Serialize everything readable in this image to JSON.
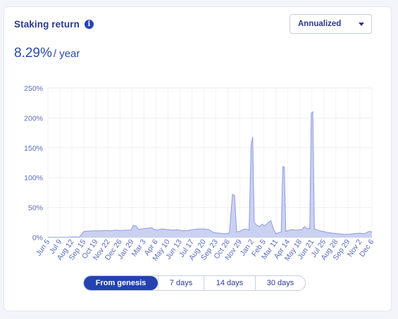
{
  "header": {
    "title": "Staking return",
    "info_icon": "info-icon",
    "dropdown": {
      "selected": "Annualized",
      "icon": "chevron-down-icon"
    }
  },
  "summary": {
    "value": "8.29%",
    "unit": "/ year"
  },
  "tabs": [
    {
      "label": "From genesis",
      "active": true
    },
    {
      "label": "7 days",
      "active": false
    },
    {
      "label": "14 days",
      "active": false
    },
    {
      "label": "30 days",
      "active": false
    }
  ],
  "colors": {
    "accent": "#2443b0",
    "area_fill": "#c5ccef",
    "area_line": "#8d9be0",
    "text": "#2b3a8f"
  },
  "chart_data": {
    "type": "area",
    "ylim": [
      0,
      250
    ],
    "y_ticks": [
      "0%",
      "50%",
      "100%",
      "150%",
      "200%",
      "250%"
    ],
    "grid": true,
    "x_ticks": [
      "Jun 5",
      "Jul 9",
      "Aug 12",
      "Sep 15",
      "Oct 19",
      "Nov 22",
      "Dec 26",
      "Jan 29",
      "Mar 3",
      "Apr 6",
      "May 10",
      "Jun 13",
      "Jul 17",
      "Aug 20",
      "Sep 23",
      "Oct 26",
      "Nov 29",
      "Jan 2",
      "Feb 5",
      "Mar 11",
      "Apr 14",
      "May 18",
      "Jun 21",
      "Jul 25",
      "Aug 28",
      "Sep 29",
      "Nov 2",
      "Dec 6"
    ],
    "points": [
      [
        0,
        0
      ],
      [
        4,
        0
      ],
      [
        5,
        1
      ],
      [
        6,
        0
      ],
      [
        7,
        10
      ],
      [
        8,
        10.5
      ],
      [
        9,
        11
      ],
      [
        10,
        11
      ],
      [
        11,
        11.5
      ],
      [
        12,
        11
      ],
      [
        13,
        12
      ],
      [
        14,
        11.5
      ],
      [
        15,
        12
      ],
      [
        16,
        12
      ],
      [
        16.5,
        20
      ],
      [
        17,
        19
      ],
      [
        17.5,
        13
      ],
      [
        18,
        14
      ],
      [
        19,
        15
      ],
      [
        20,
        16
      ],
      [
        20.5,
        13
      ],
      [
        21,
        12
      ],
      [
        22,
        14
      ],
      [
        23,
        13
      ],
      [
        24,
        12
      ],
      [
        25,
        12.5
      ],
      [
        26,
        11
      ],
      [
        27,
        11.5
      ],
      [
        28,
        13
      ],
      [
        29,
        14
      ],
      [
        30,
        14
      ],
      [
        31,
        13
      ],
      [
        32,
        8
      ],
      [
        33,
        7
      ],
      [
        34,
        6
      ],
      [
        35,
        7
      ],
      [
        35.6,
        72
      ],
      [
        36,
        70
      ],
      [
        36.4,
        9
      ],
      [
        37,
        10
      ],
      [
        38,
        14
      ],
      [
        38.8,
        12
      ],
      [
        39.2,
        155
      ],
      [
        39.5,
        168
      ],
      [
        39.8,
        25
      ],
      [
        40.3,
        20
      ],
      [
        40.8,
        18
      ],
      [
        41.3,
        22
      ],
      [
        41.8,
        19
      ],
      [
        42.4,
        24
      ],
      [
        43,
        28
      ],
      [
        43.5,
        14
      ],
      [
        44,
        6
      ],
      [
        44.6,
        8
      ],
      [
        45,
        9
      ],
      [
        45.3,
        118
      ],
      [
        45.6,
        118
      ],
      [
        45.9,
        10
      ],
      [
        46.5,
        12
      ],
      [
        47,
        13
      ],
      [
        48,
        12
      ],
      [
        49,
        13
      ],
      [
        49.5,
        18
      ],
      [
        50,
        14
      ],
      [
        50.5,
        15
      ],
      [
        50.8,
        208
      ],
      [
        51.1,
        210
      ],
      [
        51.4,
        14
      ],
      [
        52,
        12
      ],
      [
        53,
        10
      ],
      [
        54,
        8
      ],
      [
        55,
        7
      ],
      [
        56,
        6
      ],
      [
        57,
        5
      ],
      [
        58,
        5
      ],
      [
        59,
        6
      ],
      [
        60,
        7
      ],
      [
        61,
        6
      ],
      [
        62,
        10
      ],
      [
        62.5,
        9
      ]
    ],
    "x_max": 62.5
  }
}
